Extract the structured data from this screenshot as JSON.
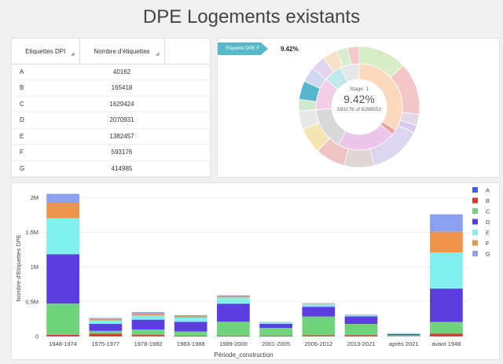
{
  "page_title": "DPE Logements existants",
  "table": {
    "headers": [
      "Etiquettes DPI",
      "Nombre d'étiquettes"
    ],
    "rows": [
      {
        "k": "A",
        "v": "40162"
      },
      {
        "k": "B",
        "v": "165418"
      },
      {
        "k": "C",
        "v": "1629424"
      },
      {
        "k": "D",
        "v": "2070931"
      },
      {
        "k": "E",
        "v": "1382457"
      },
      {
        "k": "F",
        "v": "593176"
      },
      {
        "k": "G",
        "v": "414985"
      }
    ]
  },
  "sunburst": {
    "breadcrumb": "Etiquette DPE F",
    "percent": "9.42%",
    "center_stage": "Stage: 1",
    "center_percent": "9.42%",
    "center_count": "593176 of 6296553"
  },
  "colors": {
    "A": "#3b64e0",
    "B": "#d63b2c",
    "C": "#6fd47b",
    "D": "#5a3ee0",
    "E": "#82f0ee",
    "F": "#f0944b",
    "G": "#8ca0f2"
  },
  "chart_data": {
    "type": "bar",
    "stacked": true,
    "categories": [
      "1948-1974",
      "1975-1977",
      "1978-1982",
      "1983-1988",
      "1989-2000",
      "2001-2005",
      "2006-2012",
      "2013-2021",
      "après 2021",
      "avant 1948"
    ],
    "series": [
      {
        "name": "A",
        "values": [
          5000,
          1000,
          2000,
          2000,
          3000,
          3000,
          8000,
          10000,
          2000,
          5000
        ]
      },
      {
        "name": "B",
        "values": [
          20000,
          40000,
          20000,
          10000,
          10000,
          10000,
          10000,
          10000,
          2000,
          35000
        ]
      },
      {
        "name": "C",
        "values": [
          450000,
          40000,
          80000,
          60000,
          200000,
          110000,
          270000,
          160000,
          15000,
          170000
        ]
      },
      {
        "name": "D",
        "values": [
          710000,
          100000,
          140000,
          140000,
          260000,
          60000,
          140000,
          110000,
          15000,
          480000
        ]
      },
      {
        "name": "E",
        "values": [
          520000,
          50000,
          60000,
          60000,
          90000,
          20000,
          40000,
          20000,
          10000,
          520000
        ]
      },
      {
        "name": "F",
        "values": [
          220000,
          20000,
          30000,
          20000,
          20000,
          3000,
          5000,
          3000,
          2000,
          300000
        ]
      },
      {
        "name": "G",
        "values": [
          130000,
          15000,
          20000,
          15000,
          10000,
          4000,
          7000,
          5000,
          2000,
          250000
        ]
      }
    ],
    "xlabel": "Période_construction",
    "ylabel": "Nombre d'Etiquettes DPE",
    "ylim": [
      0,
      2050000
    ],
    "yticks": [
      0,
      500000,
      1000000,
      1500000,
      2000000
    ],
    "ytick_labels": [
      "0",
      "0.5M",
      "1M",
      "1.5M",
      "2M"
    ],
    "legend": "top-right"
  }
}
